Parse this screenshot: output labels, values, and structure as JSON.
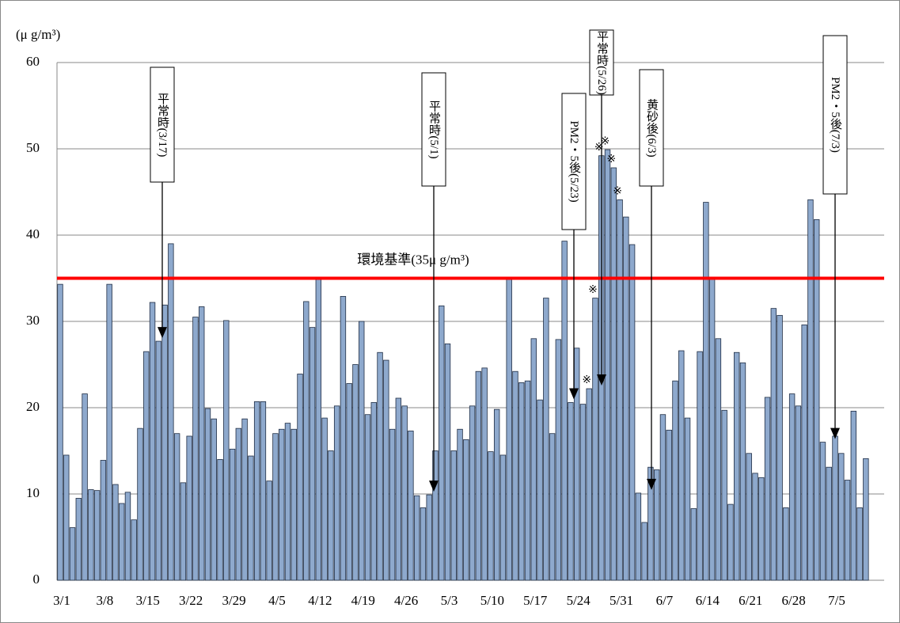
{
  "chart_data": {
    "type": "bar",
    "unit_label": "(μ g/m³)",
    "categories": [
      "3/1",
      null,
      null,
      null,
      null,
      null,
      null,
      "3/8",
      null,
      null,
      null,
      null,
      null,
      null,
      "3/15",
      null,
      null,
      null,
      null,
      null,
      null,
      "3/22",
      null,
      null,
      null,
      null,
      null,
      null,
      "3/29",
      null,
      null,
      null,
      null,
      null,
      null,
      "4/5",
      null,
      null,
      null,
      null,
      null,
      null,
      "4/12",
      null,
      null,
      null,
      null,
      null,
      null,
      "4/19",
      null,
      null,
      null,
      null,
      null,
      null,
      "4/26",
      null,
      null,
      null,
      null,
      null,
      null,
      "5/3",
      null,
      null,
      null,
      null,
      null,
      null,
      "5/10",
      null,
      null,
      null,
      null,
      null,
      null,
      "5/17",
      null,
      null,
      null,
      null,
      null,
      null,
      "5/24",
      null,
      null,
      null,
      null,
      null,
      null,
      "5/31",
      null,
      null,
      null,
      null,
      null,
      null,
      "6/7",
      null,
      null,
      null,
      null,
      null,
      null,
      "6/14",
      null,
      null,
      null,
      null,
      null,
      null,
      "6/21",
      null,
      null,
      null,
      null,
      null,
      null,
      "6/28",
      null,
      null,
      null,
      null,
      null,
      null,
      "7/5",
      null,
      null,
      null,
      null,
      null
    ],
    "values": [
      34.3,
      14.5,
      6.1,
      9.5,
      21.6,
      10.5,
      10.4,
      13.9,
      34.3,
      11.1,
      8.9,
      10.2,
      7.0,
      17.6,
      26.5,
      32.2,
      27.7,
      31.9,
      39.0,
      17.0,
      11.3,
      16.7,
      30.5,
      31.7,
      19.9,
      18.7,
      14.0,
      30.1,
      15.2,
      17.6,
      18.7,
      14.4,
      20.7,
      20.7,
      11.5,
      17.0,
      17.5,
      18.2,
      17.5,
      23.9,
      32.3,
      29.3,
      35.1,
      18.8,
      15.0,
      20.2,
      32.9,
      22.8,
      25.0,
      30.0,
      19.2,
      20.6,
      26.4,
      25.5,
      17.5,
      21.1,
      20.2,
      17.3,
      9.8,
      8.4,
      9.9,
      15.0,
      31.8,
      27.4,
      15.0,
      17.5,
      16.3,
      20.2,
      24.2,
      24.6,
      14.9,
      19.8,
      14.5,
      34.9,
      24.2,
      22.9,
      23.1,
      28.0,
      20.9,
      32.7,
      17.0,
      27.9,
      39.3,
      20.6,
      26.9,
      20.4,
      22.2,
      32.7,
      49.2,
      49.9,
      47.8,
      44.1,
      42.1,
      38.9,
      10.1,
      6.7,
      13.1,
      12.8,
      19.2,
      17.4,
      23.1,
      26.6,
      18.8,
      8.3,
      26.5,
      43.8,
      35.1,
      28.0,
      19.7,
      8.8,
      26.4,
      25.2,
      14.7,
      12.4,
      11.9,
      21.2,
      31.5,
      30.7,
      8.4,
      21.6,
      20.2,
      29.6,
      44.1,
      41.8,
      16.0,
      13.1,
      16.7,
      14.7,
      11.6,
      19.6,
      8.4,
      14.1
    ],
    "color": "#8ea9cd",
    "ylim": [
      0,
      60
    ],
    "yticks": [
      0,
      10,
      20,
      30,
      40,
      50,
      60
    ],
    "grid": true,
    "reference_line": {
      "value": 35,
      "label": "環境基準(35μ g/m³)",
      "color": "#ff0000"
    },
    "annotations": [
      "平常時(3/17)",
      "平常時(5/1)",
      "PM2・5後(5/23)",
      "平常時(5/26)",
      "黄砂後(6/3)",
      "PM2・5後(7/3)"
    ],
    "note_mark": "※"
  }
}
